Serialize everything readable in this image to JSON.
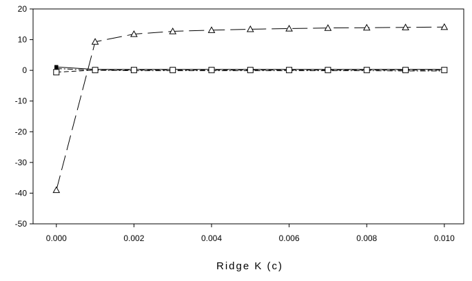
{
  "chart_data": {
    "type": "line",
    "title": "",
    "xlabel": "Ridge K (c)",
    "ylabel": "",
    "xlim": [
      -0.0006,
      0.0105
    ],
    "ylim": [
      -50,
      20
    ],
    "grid": false,
    "legend": "none",
    "x_ticks": [
      "0.000",
      "0.002",
      "0.004",
      "0.006",
      "0.008",
      "0.010"
    ],
    "y_ticks": [
      "20",
      "10",
      "0",
      "-10",
      "-20",
      "-30",
      "-40",
      "-50"
    ],
    "x": [
      0.0,
      0.001,
      0.002,
      0.003,
      0.004,
      0.005,
      0.006,
      0.007,
      0.008,
      0.009,
      0.01
    ],
    "series": [
      {
        "marker": "triangle",
        "line": "long-dash",
        "values": [
          -39.0,
          9.3,
          11.8,
          12.7,
          13.1,
          13.4,
          13.6,
          13.8,
          13.9,
          14.0,
          14.1
        ]
      },
      {
        "marker": "square",
        "line": "dash",
        "values": [
          -0.6,
          0.1,
          0.1,
          0.1,
          0.1,
          0.1,
          0.1,
          0.1,
          0.1,
          0.1,
          0.1
        ]
      },
      {
        "marker": "filled-square",
        "line": "solid",
        "values": [
          1.1,
          0.3,
          0.3,
          0.3,
          0.3,
          0.3,
          0.3,
          0.3,
          0.3,
          0.3,
          0.3
        ]
      },
      {
        "marker": "filled-circle",
        "line": "dash-dot",
        "values": [
          0.6,
          0.0,
          -0.1,
          -0.1,
          -0.1,
          -0.1,
          -0.1,
          -0.1,
          -0.1,
          -0.2,
          -0.2
        ]
      }
    ]
  }
}
